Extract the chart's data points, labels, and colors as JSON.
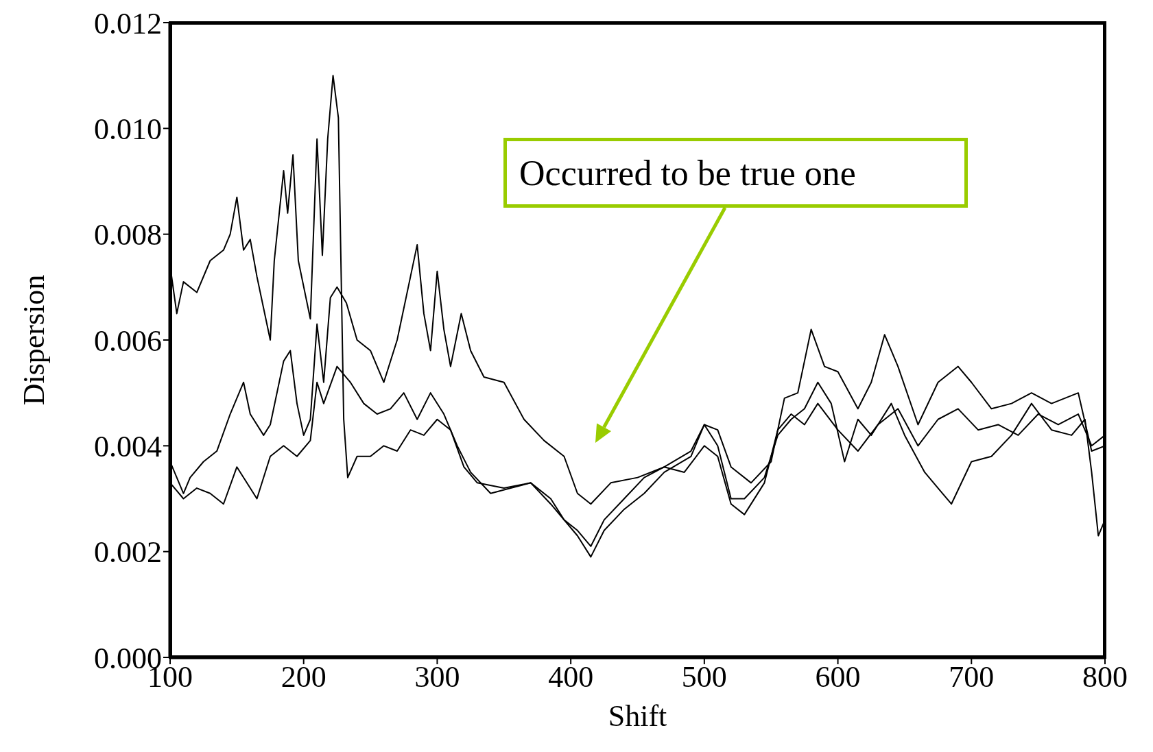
{
  "chart_data": {
    "type": "line",
    "xlabel": "Shift",
    "ylabel": "Dispersion",
    "xlim": [
      100,
      800
    ],
    "ylim": [
      0,
      0.012
    ],
    "xticks": [
      100,
      200,
      300,
      400,
      500,
      600,
      700,
      800
    ],
    "yticks": [
      {
        "value": 0,
        "label": "0.000"
      },
      {
        "value": 0.002,
        "label": "0.002"
      },
      {
        "value": 0.004,
        "label": "0.004"
      },
      {
        "value": 0.006,
        "label": "0.006"
      },
      {
        "value": 0.008,
        "label": "0.008"
      },
      {
        "value": 0.01,
        "label": "0.010"
      },
      {
        "value": 0.012,
        "label": "0.012"
      }
    ],
    "marker": "none",
    "line_style": "solid",
    "annotations": [
      "Occurred to be true one"
    ],
    "series": [
      {
        "color": "#000000",
        "x": [
          100,
          105,
          110,
          120,
          130,
          140,
          145,
          150,
          155,
          160,
          165,
          170,
          175,
          178,
          185,
          188,
          192,
          196,
          205,
          210,
          214,
          218,
          222,
          226,
          230,
          233,
          240,
          250,
          260,
          270,
          280,
          290,
          300,
          310,
          320,
          330,
          350,
          370,
          385,
          395,
          405,
          415,
          425,
          440,
          455,
          470,
          490,
          500,
          510,
          520,
          530,
          545,
          555,
          565,
          575,
          585,
          595,
          605,
          615,
          625,
          640,
          650,
          665,
          675,
          685,
          700,
          715,
          730,
          745,
          760,
          775,
          785,
          790,
          795,
          800
        ],
        "values": [
          0.0074,
          0.0065,
          0.0071,
          0.0069,
          0.0075,
          0.0077,
          0.008,
          0.0087,
          0.0077,
          0.0079,
          0.0072,
          0.0066,
          0.006,
          0.0075,
          0.0092,
          0.0084,
          0.0095,
          0.0075,
          0.0064,
          0.0098,
          0.0076,
          0.0098,
          0.011,
          0.0102,
          0.0045,
          0.0034,
          0.0038,
          0.0038,
          0.004,
          0.0039,
          0.0043,
          0.0042,
          0.0045,
          0.0043,
          0.0036,
          0.0033,
          0.0032,
          0.0033,
          0.003,
          0.0026,
          0.0023,
          0.0019,
          0.0024,
          0.0028,
          0.0031,
          0.0035,
          0.0038,
          0.0044,
          0.004,
          0.003,
          0.003,
          0.0034,
          0.0042,
          0.0045,
          0.0047,
          0.0052,
          0.0048,
          0.0037,
          0.0045,
          0.0042,
          0.0048,
          0.0042,
          0.0035,
          0.0032,
          0.0029,
          0.0037,
          0.0038,
          0.0042,
          0.0048,
          0.0043,
          0.0042,
          0.0045,
          0.0035,
          0.0023,
          0.0026
        ]
      },
      {
        "color": "#000000",
        "x": [
          100,
          105,
          110,
          115,
          125,
          135,
          145,
          155,
          160,
          170,
          175,
          185,
          190,
          195,
          200,
          205,
          210,
          215,
          220,
          225,
          232,
          240,
          250,
          260,
          270,
          280,
          285,
          290,
          295,
          300,
          305,
          310,
          318,
          325,
          335,
          350,
          365,
          380,
          395,
          405,
          415,
          430,
          450,
          470,
          490,
          500,
          510,
          520,
          535,
          550,
          560,
          570,
          580,
          590,
          600,
          615,
          625,
          635,
          645,
          660,
          675,
          690,
          700,
          715,
          730,
          745,
          760,
          780,
          790,
          800
        ],
        "values": [
          0.0037,
          0.0034,
          0.0031,
          0.0034,
          0.0037,
          0.0039,
          0.0046,
          0.0052,
          0.0046,
          0.0042,
          0.0044,
          0.0056,
          0.0058,
          0.0048,
          0.0042,
          0.0045,
          0.0063,
          0.0052,
          0.0068,
          0.007,
          0.0067,
          0.006,
          0.0058,
          0.0052,
          0.006,
          0.0072,
          0.0078,
          0.0065,
          0.0058,
          0.0073,
          0.0062,
          0.0055,
          0.0065,
          0.0058,
          0.0053,
          0.0052,
          0.0045,
          0.0041,
          0.0038,
          0.0031,
          0.0029,
          0.0033,
          0.0034,
          0.0036,
          0.0039,
          0.0044,
          0.0043,
          0.0036,
          0.0033,
          0.0037,
          0.0049,
          0.005,
          0.0062,
          0.0055,
          0.0054,
          0.0047,
          0.0052,
          0.0061,
          0.0055,
          0.0044,
          0.0052,
          0.0055,
          0.0052,
          0.0047,
          0.0048,
          0.005,
          0.0048,
          0.005,
          0.0039,
          0.004
        ]
      },
      {
        "color": "#000000",
        "x": [
          100,
          110,
          120,
          130,
          140,
          150,
          160,
          165,
          175,
          185,
          195,
          205,
          210,
          215,
          225,
          235,
          245,
          255,
          265,
          275,
          285,
          295,
          305,
          315,
          325,
          340,
          355,
          370,
          385,
          395,
          405,
          415,
          425,
          440,
          455,
          470,
          485,
          500,
          510,
          520,
          530,
          545,
          555,
          565,
          575,
          585,
          600,
          615,
          630,
          645,
          660,
          675,
          690,
          705,
          720,
          735,
          750,
          765,
          780,
          790,
          800
        ],
        "values": [
          0.0033,
          0.003,
          0.0032,
          0.0031,
          0.0029,
          0.0036,
          0.0032,
          0.003,
          0.0038,
          0.004,
          0.0038,
          0.0041,
          0.0052,
          0.0048,
          0.0055,
          0.0052,
          0.0048,
          0.0046,
          0.0047,
          0.005,
          0.0045,
          0.005,
          0.0046,
          0.004,
          0.0035,
          0.0031,
          0.0032,
          0.0033,
          0.0029,
          0.0026,
          0.0024,
          0.0021,
          0.0026,
          0.003,
          0.0034,
          0.0036,
          0.0035,
          0.004,
          0.0038,
          0.0029,
          0.0027,
          0.0033,
          0.0043,
          0.0046,
          0.0044,
          0.0048,
          0.0043,
          0.0039,
          0.0044,
          0.0047,
          0.004,
          0.0045,
          0.0047,
          0.0043,
          0.0044,
          0.0042,
          0.0046,
          0.0044,
          0.0046,
          0.004,
          0.0042
        ]
      }
    ]
  }
}
